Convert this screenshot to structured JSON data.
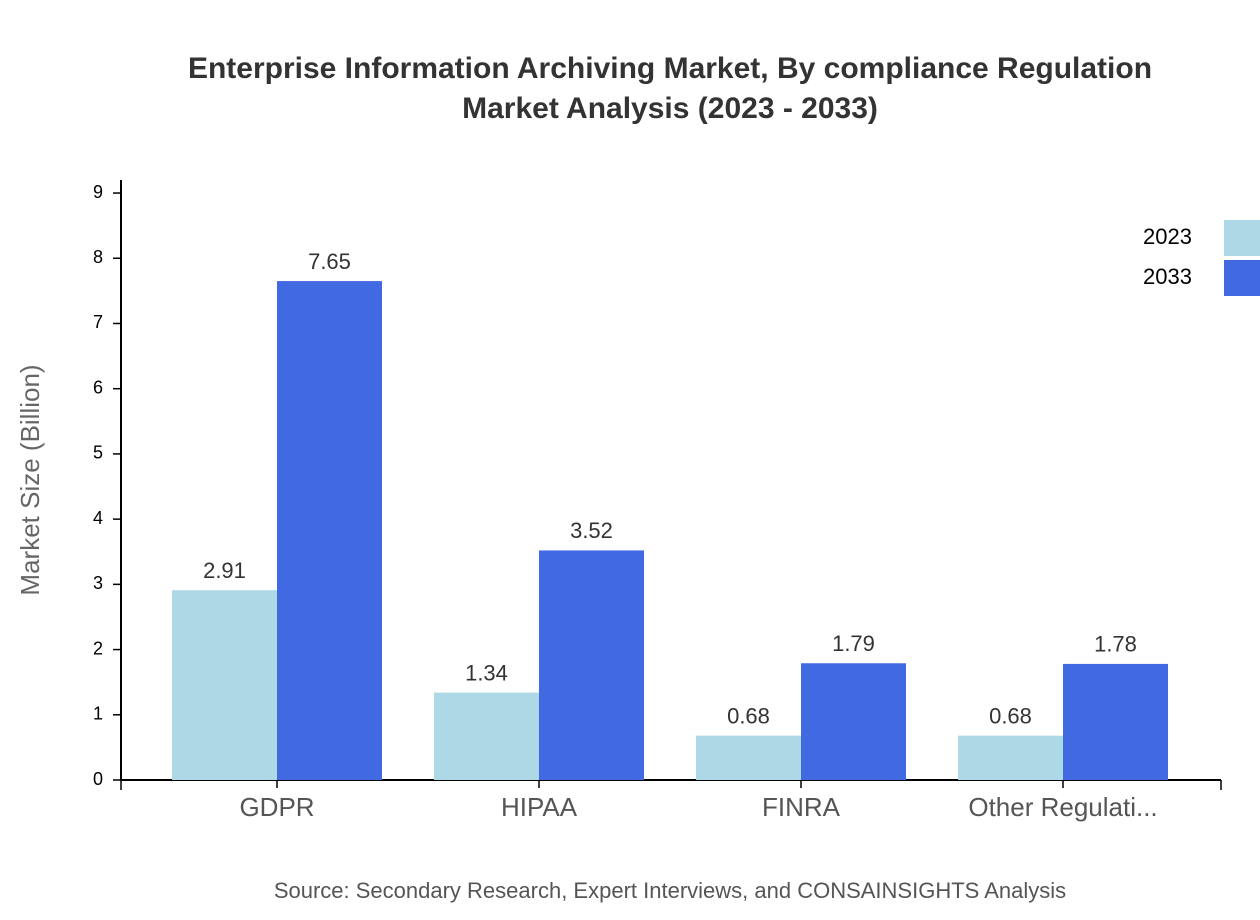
{
  "chart_data": {
    "type": "bar",
    "title": [
      "Enterprise Information Archiving Market, By compliance Regulation",
      "Market Analysis (2023 - 2033)"
    ],
    "y_label": "Market Size (Billion)",
    "source": "Source: Secondary Research, Expert Interviews, and CONSAINSIGHTS Analysis",
    "categories": [
      "GDPR",
      "HIPAA",
      "FINRA",
      "Other Regulati..."
    ],
    "series": [
      {
        "name": "2023",
        "color": "#add8e6",
        "values": [
          2.91,
          1.34,
          0.68,
          0.68
        ]
      },
      {
        "name": "2033",
        "color": "#4169e1",
        "values": [
          7.65,
          3.52,
          1.79,
          1.78
        ]
      }
    ],
    "ylim": [
      0,
      9.2
    ],
    "yticks": [
      0,
      1,
      2,
      3,
      4,
      5,
      6,
      7,
      8,
      9
    ],
    "legend": "top-right"
  }
}
